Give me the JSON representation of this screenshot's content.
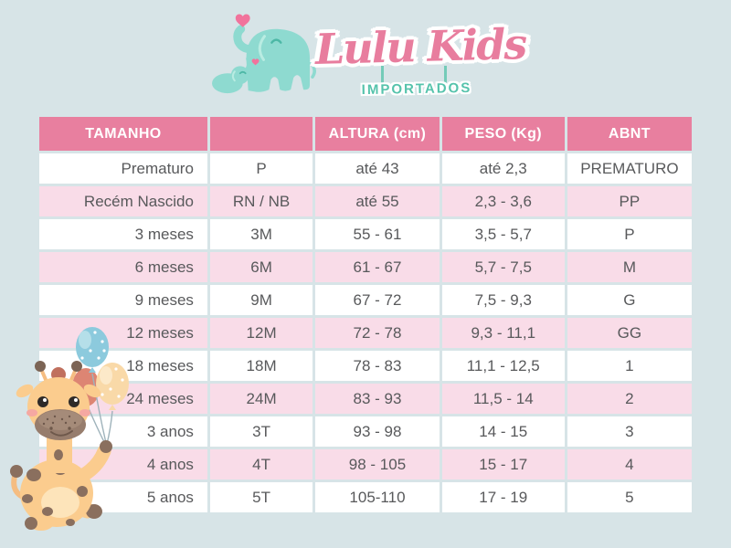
{
  "logo": {
    "brand": "Lulu Kids",
    "badge": "IMPORTADOS",
    "icon": "mother-and-baby-elephant-with-heart-icon"
  },
  "mascot": {
    "icon": "giraffe-holding-balloons-illustration"
  },
  "chart_data": {
    "type": "table",
    "title": "Lulu Kids Importados",
    "columns": [
      "TAMANHO",
      "",
      "ALTURA (cm)",
      "PESO (Kg)",
      "ABNT"
    ],
    "rows": [
      [
        "Prematuro",
        "P",
        "até 43",
        "até 2,3",
        "PREMATURO"
      ],
      [
        "Recém Nascido",
        "RN / NB",
        "até 55",
        "2,3 - 3,6",
        "PP"
      ],
      [
        "3 meses",
        "3M",
        "55 - 61",
        "3,5 - 5,7",
        "P"
      ],
      [
        "6 meses",
        "6M",
        "61 - 67",
        "5,7 - 7,5",
        "M"
      ],
      [
        "9 meses",
        "9M",
        "67 - 72",
        "7,5 - 9,3",
        "G"
      ],
      [
        "12 meses",
        "12M",
        "72 - 78",
        "9,3 - 11,1",
        "GG"
      ],
      [
        "18 meses",
        "18M",
        "78 - 83",
        "11,1 - 12,5",
        "1"
      ],
      [
        "24 meses",
        "24M",
        "83 - 93",
        "11,5 - 14",
        "2"
      ],
      [
        "3 anos",
        "3T",
        "93 - 98",
        "14 - 15",
        "3"
      ],
      [
        "4 anos",
        "4T",
        "98 - 105",
        "15 - 17",
        "4"
      ],
      [
        "5 anos",
        "5T",
        "105-110",
        "17 - 19",
        "5"
      ]
    ],
    "layout": {
      "row_striping": [
        "#ffffff",
        "#f9dce8"
      ],
      "header_background": "#e87f9f"
    }
  },
  "colors": {
    "background": "#d7e4e7",
    "header_pink": "#e87f9f",
    "row_pink": "#f9dce8",
    "row_white": "#ffffff",
    "cell_text": "#58595b",
    "brand_pink": "#e87d9e",
    "badge_teal": "#56c3ac",
    "elephant_mint": "#8edad0",
    "giraffe_tan": "#fbcc8e",
    "giraffe_brown": "#8a6f5e",
    "balloon_blue": "#8ccadd",
    "balloon_peach": "#f9d9a8",
    "balloon_salmon": "#dd8573"
  }
}
